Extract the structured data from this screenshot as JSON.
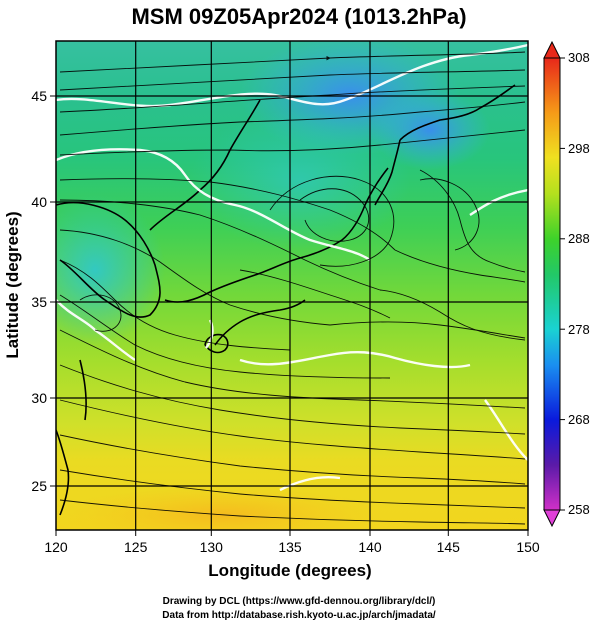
{
  "title": "MSM 09Z05Apr2024 (1013.2hPa)",
  "x_axis": {
    "label": "Longitude (degrees)",
    "range": [
      120,
      150
    ],
    "ticks": [
      "120",
      "125",
      "130",
      "135",
      "140",
      "145",
      "150"
    ]
  },
  "y_axis": {
    "label": "Latitude  (degrees)",
    "range": [
      22.5,
      47.5
    ],
    "ticks": [
      "25",
      "30",
      "35",
      "40",
      "45"
    ]
  },
  "colorbar": {
    "range": [
      258,
      308
    ],
    "ticks": [
      "308",
      "298",
      "288",
      "278",
      "268",
      "258"
    ]
  },
  "credits": {
    "line1": "Drawing by DCL (https://www.gfd-dennou.org/library/dcl/)",
    "line2": "Data from http://database.rish.kyoto-u.ac.jp/arch/jmadata/"
  }
}
